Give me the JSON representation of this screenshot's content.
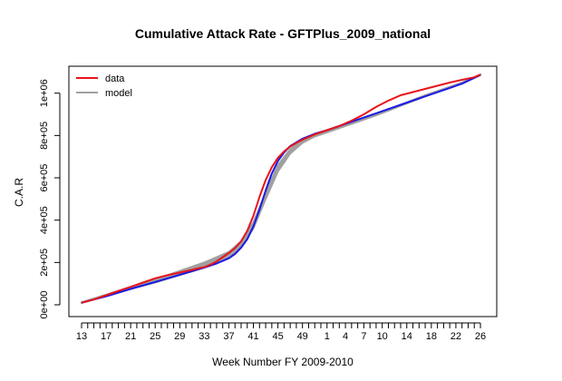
{
  "chart_data": {
    "type": "line",
    "title": "Cumulative Attack Rate - GFTPlus_2009_national",
    "xlabel": "Week Number FY 2009-2010",
    "ylabel": "C.A.R",
    "x_ticks": [
      "13",
      "17",
      "21",
      "25",
      "29",
      "33",
      "37",
      "41",
      "45",
      "49",
      "1",
      "4",
      "7",
      "10",
      "14",
      "18",
      "22",
      "26"
    ],
    "weeks": [
      "13",
      "14",
      "15",
      "16",
      "17",
      "18",
      "19",
      "20",
      "21",
      "22",
      "23",
      "24",
      "25",
      "26",
      "27",
      "28",
      "29",
      "30",
      "31",
      "32",
      "33",
      "34",
      "35",
      "36",
      "37",
      "38",
      "39",
      "40",
      "41",
      "42",
      "43",
      "44",
      "45",
      "46",
      "47",
      "48",
      "49",
      "50",
      "51",
      "52",
      "1",
      "2",
      "3",
      "4",
      "5",
      "6",
      "7",
      "8",
      "9",
      "10",
      "11",
      "12",
      "13",
      "14",
      "15",
      "16",
      "17",
      "18",
      "19",
      "20",
      "21",
      "22",
      "23",
      "24",
      "25",
      "26"
    ],
    "ylim": [
      0,
      1100000
    ],
    "y_ticks": [
      0,
      200000,
      400000,
      600000,
      800000,
      1000000
    ],
    "y_tick_labels": [
      "0e+00",
      "2e+05",
      "4e+05",
      "6e+05",
      "8e+05",
      "1e+06"
    ],
    "legend": {
      "position": "top-left",
      "entries": [
        {
          "label": "data",
          "color": "#e8141a"
        },
        {
          "label": "model",
          "color": "#a0a0a0"
        }
      ]
    },
    "series": [
      {
        "role": "model-band",
        "color": "#a0a0a0",
        "band_upper": [
          [
            0,
            12000
          ],
          [
            4,
            48000
          ],
          [
            8,
            85000
          ],
          [
            12,
            120000
          ],
          [
            16,
            160000
          ],
          [
            20,
            200000
          ],
          [
            22,
            225000
          ],
          [
            24,
            250000
          ],
          [
            26,
            300000
          ],
          [
            28,
            390000
          ],
          [
            30,
            530000
          ],
          [
            32,
            660000
          ],
          [
            34,
            735000
          ],
          [
            36,
            780000
          ],
          [
            38,
            805000
          ],
          [
            40,
            820000
          ],
          [
            44,
            860000
          ],
          [
            48,
            900000
          ],
          [
            52,
            945000
          ],
          [
            56,
            990000
          ],
          [
            60,
            1030000
          ],
          [
            62,
            1050000
          ],
          [
            65,
            1088000
          ]
        ],
        "band_lower": [
          [
            0,
            8000
          ],
          [
            4,
            42000
          ],
          [
            8,
            75000
          ],
          [
            12,
            105000
          ],
          [
            16,
            140000
          ],
          [
            20,
            175000
          ],
          [
            22,
            200000
          ],
          [
            24,
            225000
          ],
          [
            26,
            275000
          ],
          [
            28,
            360000
          ],
          [
            30,
            500000
          ],
          [
            32,
            630000
          ],
          [
            34,
            715000
          ],
          [
            36,
            765000
          ],
          [
            38,
            795000
          ],
          [
            40,
            815000
          ],
          [
            44,
            855000
          ],
          [
            48,
            895000
          ],
          [
            52,
            940000
          ],
          [
            56,
            985000
          ],
          [
            60,
            1025000
          ],
          [
            62,
            1045000
          ],
          [
            65,
            1085000
          ]
        ]
      },
      {
        "role": "fit",
        "color": "#1a1ae6",
        "points": [
          [
            0,
            10000
          ],
          [
            4,
            40000
          ],
          [
            8,
            75000
          ],
          [
            12,
            108000
          ],
          [
            16,
            142000
          ],
          [
            20,
            176000
          ],
          [
            22,
            195000
          ],
          [
            24,
            220000
          ],
          [
            25,
            240000
          ],
          [
            26,
            270000
          ],
          [
            27,
            310000
          ],
          [
            28,
            370000
          ],
          [
            29,
            450000
          ],
          [
            30,
            540000
          ],
          [
            31,
            620000
          ],
          [
            32,
            680000
          ],
          [
            33,
            720000
          ],
          [
            34,
            750000
          ],
          [
            36,
            785000
          ],
          [
            38,
            808000
          ],
          [
            40,
            825000
          ],
          [
            44,
            865000
          ],
          [
            48,
            905000
          ],
          [
            52,
            945000
          ],
          [
            56,
            985000
          ],
          [
            60,
            1025000
          ],
          [
            62,
            1045000
          ],
          [
            65,
            1086000
          ]
        ]
      },
      {
        "name": "data",
        "color": "#e8141a",
        "points": [
          [
            0,
            10000
          ],
          [
            2,
            25000
          ],
          [
            4,
            45000
          ],
          [
            6,
            65000
          ],
          [
            8,
            85000
          ],
          [
            10,
            105000
          ],
          [
            12,
            125000
          ],
          [
            14,
            140000
          ],
          [
            16,
            152000
          ],
          [
            18,
            165000
          ],
          [
            19,
            172000
          ],
          [
            20,
            178000
          ],
          [
            21,
            190000
          ],
          [
            22,
            205000
          ],
          [
            23,
            225000
          ],
          [
            24,
            245000
          ],
          [
            25,
            268000
          ],
          [
            26,
            300000
          ],
          [
            27,
            350000
          ],
          [
            28,
            420000
          ],
          [
            29,
            510000
          ],
          [
            30,
            590000
          ],
          [
            31,
            650000
          ],
          [
            32,
            695000
          ],
          [
            33,
            725000
          ],
          [
            34,
            748000
          ],
          [
            35,
            765000
          ],
          [
            36,
            780000
          ],
          [
            38,
            805000
          ],
          [
            40,
            825000
          ],
          [
            42,
            845000
          ],
          [
            44,
            870000
          ],
          [
            46,
            900000
          ],
          [
            48,
            935000
          ],
          [
            50,
            965000
          ],
          [
            52,
            990000
          ],
          [
            54,
            1005000
          ],
          [
            56,
            1020000
          ],
          [
            58,
            1035000
          ],
          [
            60,
            1050000
          ],
          [
            62,
            1063000
          ],
          [
            64,
            1075000
          ],
          [
            65,
            1088000
          ]
        ]
      }
    ]
  }
}
